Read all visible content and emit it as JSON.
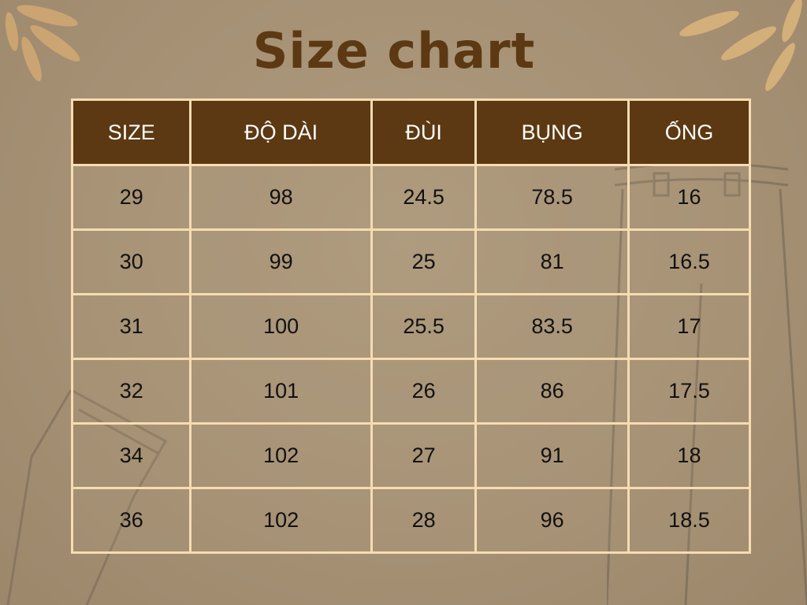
{
  "title": "Size chart",
  "colors": {
    "header_bg": "#5c3912",
    "border": "#f5dcb3",
    "background": "#a89478",
    "title": "#5c3912"
  },
  "chart_data": {
    "type": "table",
    "title": "Size chart",
    "columns": [
      "SIZE",
      "ĐỘ DÀI",
      "ĐÙI",
      "BỤNG",
      "ỐNG"
    ],
    "rows": [
      [
        "29",
        "98",
        "24.5",
        "78.5",
        "16"
      ],
      [
        "30",
        "99",
        "25",
        "81",
        "16.5"
      ],
      [
        "31",
        "100",
        "25.5",
        "83.5",
        "17"
      ],
      [
        "32",
        "101",
        "26",
        "86",
        "17.5"
      ],
      [
        "34",
        "102",
        "27",
        "91",
        "18"
      ],
      [
        "36",
        "102",
        "28",
        "96",
        "18.5"
      ]
    ]
  }
}
